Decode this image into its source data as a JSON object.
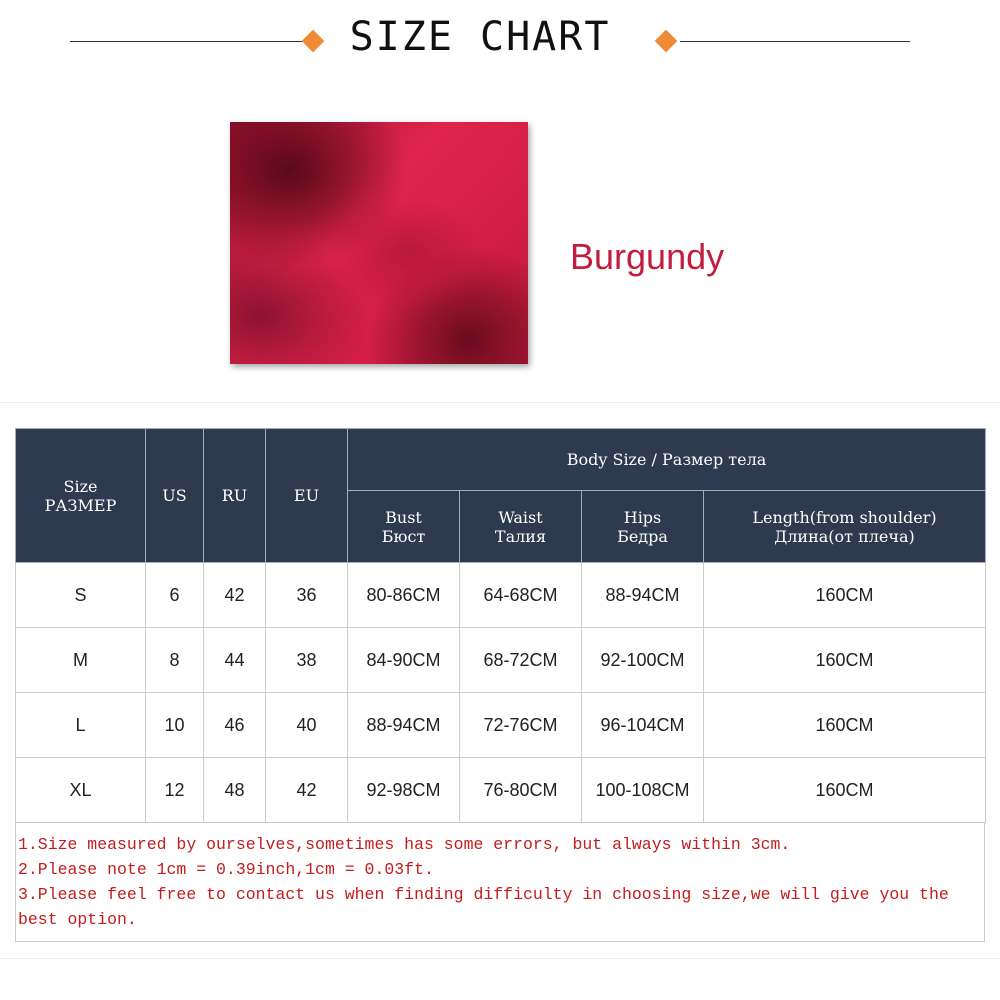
{
  "header": {
    "title": "SIZE CHART",
    "accent": "#f08a34"
  },
  "product": {
    "color_name": "Burgundy",
    "color_hex": "#c21d3d"
  },
  "table": {
    "size_header": [
      "Size",
      "РАЗМЕР"
    ],
    "us": "US",
    "ru": "RU",
    "eu": "EU",
    "body_size": "Body Size / Размер тела",
    "measures": [
      [
        "Bust",
        "Бюст"
      ],
      [
        "Waist",
        "Талия"
      ],
      [
        "Hips",
        "Бедра"
      ],
      [
        "Length(from shoulder)",
        "Длина(от плеча)"
      ]
    ],
    "rows": [
      [
        "S",
        "6",
        "42",
        "36",
        "80-86CM",
        "64-68CM",
        "88-94CM",
        "160CM"
      ],
      [
        "M",
        "8",
        "44",
        "38",
        "84-90CM",
        "68-72CM",
        "92-100CM",
        "160CM"
      ],
      [
        "L",
        "10",
        "46",
        "40",
        "88-94CM",
        "72-76CM",
        "96-104CM",
        "160CM"
      ],
      [
        "XL",
        "12",
        "48",
        "42",
        "92-98CM",
        "76-80CM",
        "100-108CM",
        "160CM"
      ]
    ]
  },
  "notes": [
    "1.Size measured by ourselves,sometimes has some errors, but always within 3cm.",
    "2.Please note 1cm = 0.39inch,1cm  = 0.03ft.",
    "3.Please feel free to contact us when finding difficulty in choosing size,we will give you the best option."
  ]
}
